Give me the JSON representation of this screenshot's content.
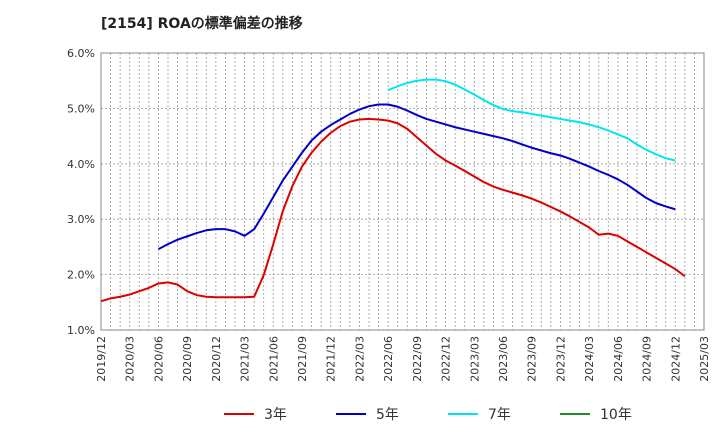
{
  "chart_data": {
    "type": "line",
    "title": "[2154]  ROAの標準偏差の推移",
    "xlabel": "",
    "ylabel": "",
    "ylim": [
      1.0,
      6.0
    ],
    "x_ticks": [
      "2019/12",
      "2020/03",
      "2020/06",
      "2020/09",
      "2020/12",
      "2021/03",
      "2021/06",
      "2021/09",
      "2021/12",
      "2022/03",
      "2022/06",
      "2022/09",
      "2022/12",
      "2023/03",
      "2023/06",
      "2023/09",
      "2023/12",
      "2024/03",
      "2024/06",
      "2024/09",
      "2024/12",
      "2025/03"
    ],
    "y_ticks": [
      "1.0%",
      "2.0%",
      "3.0%",
      "4.0%",
      "5.0%",
      "6.0%"
    ],
    "grid": true,
    "legend_position": "bottom",
    "series": [
      {
        "name": "3年",
        "color": "#dd0000",
        "start_index": 0,
        "values": [
          1.52,
          1.57,
          1.6,
          1.64,
          1.7,
          1.76,
          1.84,
          1.86,
          1.82,
          1.7,
          1.63,
          1.6,
          1.59,
          1.59,
          1.59,
          1.59,
          1.6,
          1.99,
          2.55,
          3.15,
          3.6,
          3.95,
          4.2,
          4.4,
          4.56,
          4.68,
          4.76,
          4.8,
          4.81,
          4.8,
          4.78,
          4.73,
          4.63,
          4.48,
          4.33,
          4.18,
          4.06,
          3.97,
          3.87,
          3.77,
          3.67,
          3.59,
          3.53,
          3.48,
          3.43,
          3.37,
          3.3,
          3.22,
          3.14,
          3.05,
          2.95,
          2.85,
          2.72,
          2.74,
          2.7,
          2.6,
          2.5,
          2.4,
          2.3,
          2.2,
          2.1,
          1.97
        ]
      },
      {
        "name": "5年",
        "color": "#0000cc",
        "start_index": 6,
        "values": [
          2.46,
          2.55,
          2.63,
          2.69,
          2.75,
          2.8,
          2.82,
          2.82,
          2.78,
          2.7,
          2.82,
          3.1,
          3.4,
          3.7,
          3.95,
          4.2,
          4.42,
          4.58,
          4.7,
          4.8,
          4.9,
          4.98,
          5.04,
          5.07,
          5.07,
          5.03,
          4.96,
          4.88,
          4.81,
          4.76,
          4.71,
          4.66,
          4.62,
          4.58,
          4.54,
          4.5,
          4.46,
          4.41,
          4.35,
          4.29,
          4.24,
          4.19,
          4.15,
          4.09,
          4.02,
          3.95,
          3.87,
          3.8,
          3.72,
          3.62,
          3.5,
          3.38,
          3.29,
          3.23,
          3.18
        ]
      },
      {
        "name": "7年",
        "color": "#00e5ee",
        "start_index": 30,
        "values": [
          5.33,
          5.4,
          5.46,
          5.5,
          5.52,
          5.52,
          5.49,
          5.43,
          5.34,
          5.25,
          5.15,
          5.06,
          4.99,
          4.95,
          4.93,
          4.9,
          4.87,
          4.84,
          4.81,
          4.78,
          4.75,
          4.71,
          4.66,
          4.6,
          4.53,
          4.46,
          4.35,
          4.25,
          4.17,
          4.1,
          4.06
        ]
      },
      {
        "name": "10年",
        "color": "#228b22",
        "start_index": 0,
        "values": []
      }
    ]
  }
}
